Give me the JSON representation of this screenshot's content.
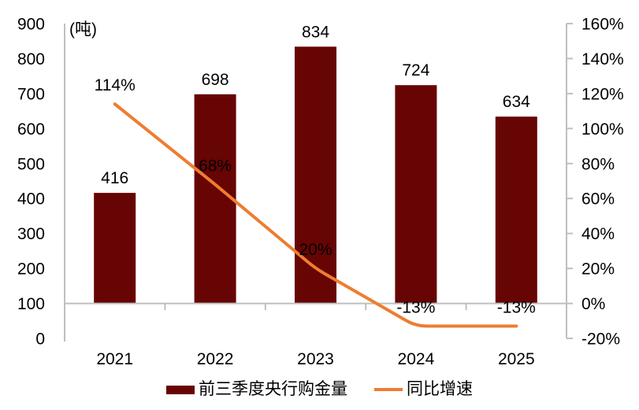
{
  "chart_data": {
    "type": "combo",
    "title": "",
    "unit_label": "(吨)",
    "categories": [
      "2021",
      "2022",
      "2023",
      "2024",
      "2025"
    ],
    "series": [
      {
        "name": "前三季度央行购金量",
        "type": "bar",
        "axis": "left",
        "color": "#670404",
        "values": [
          416,
          698,
          834,
          724,
          634
        ],
        "labels": [
          "416",
          "698",
          "834",
          "724",
          "634"
        ]
      },
      {
        "name": "同比增速",
        "type": "line",
        "axis": "right",
        "color": "#ED7D31",
        "values": [
          114,
          68,
          20,
          -13,
          -13
        ],
        "labels": [
          "114%",
          "68%",
          "20%",
          "-13%",
          "-13%"
        ]
      }
    ],
    "left_axis": {
      "range": [
        0,
        900
      ],
      "tick_values": [
        900,
        800,
        700,
        600,
        500,
        400,
        300,
        200,
        100,
        0
      ],
      "tick_labels": [
        "900",
        "800",
        "700",
        "600",
        "500",
        "400",
        "300",
        "200",
        "100",
        "0"
      ]
    },
    "right_axis": {
      "range": [
        -20,
        160
      ],
      "tick_values": [
        160,
        140,
        120,
        100,
        80,
        60,
        40,
        20,
        0,
        -20
      ],
      "tick_labels": [
        "160%",
        "140%",
        "120%",
        "100%",
        "80%",
        "60%",
        "40%",
        "20%",
        "0%",
        "-20%"
      ]
    },
    "grid": false,
    "legend_position": "bottom",
    "axis_color": "#BFBFBF",
    "label_color": "#000000"
  }
}
